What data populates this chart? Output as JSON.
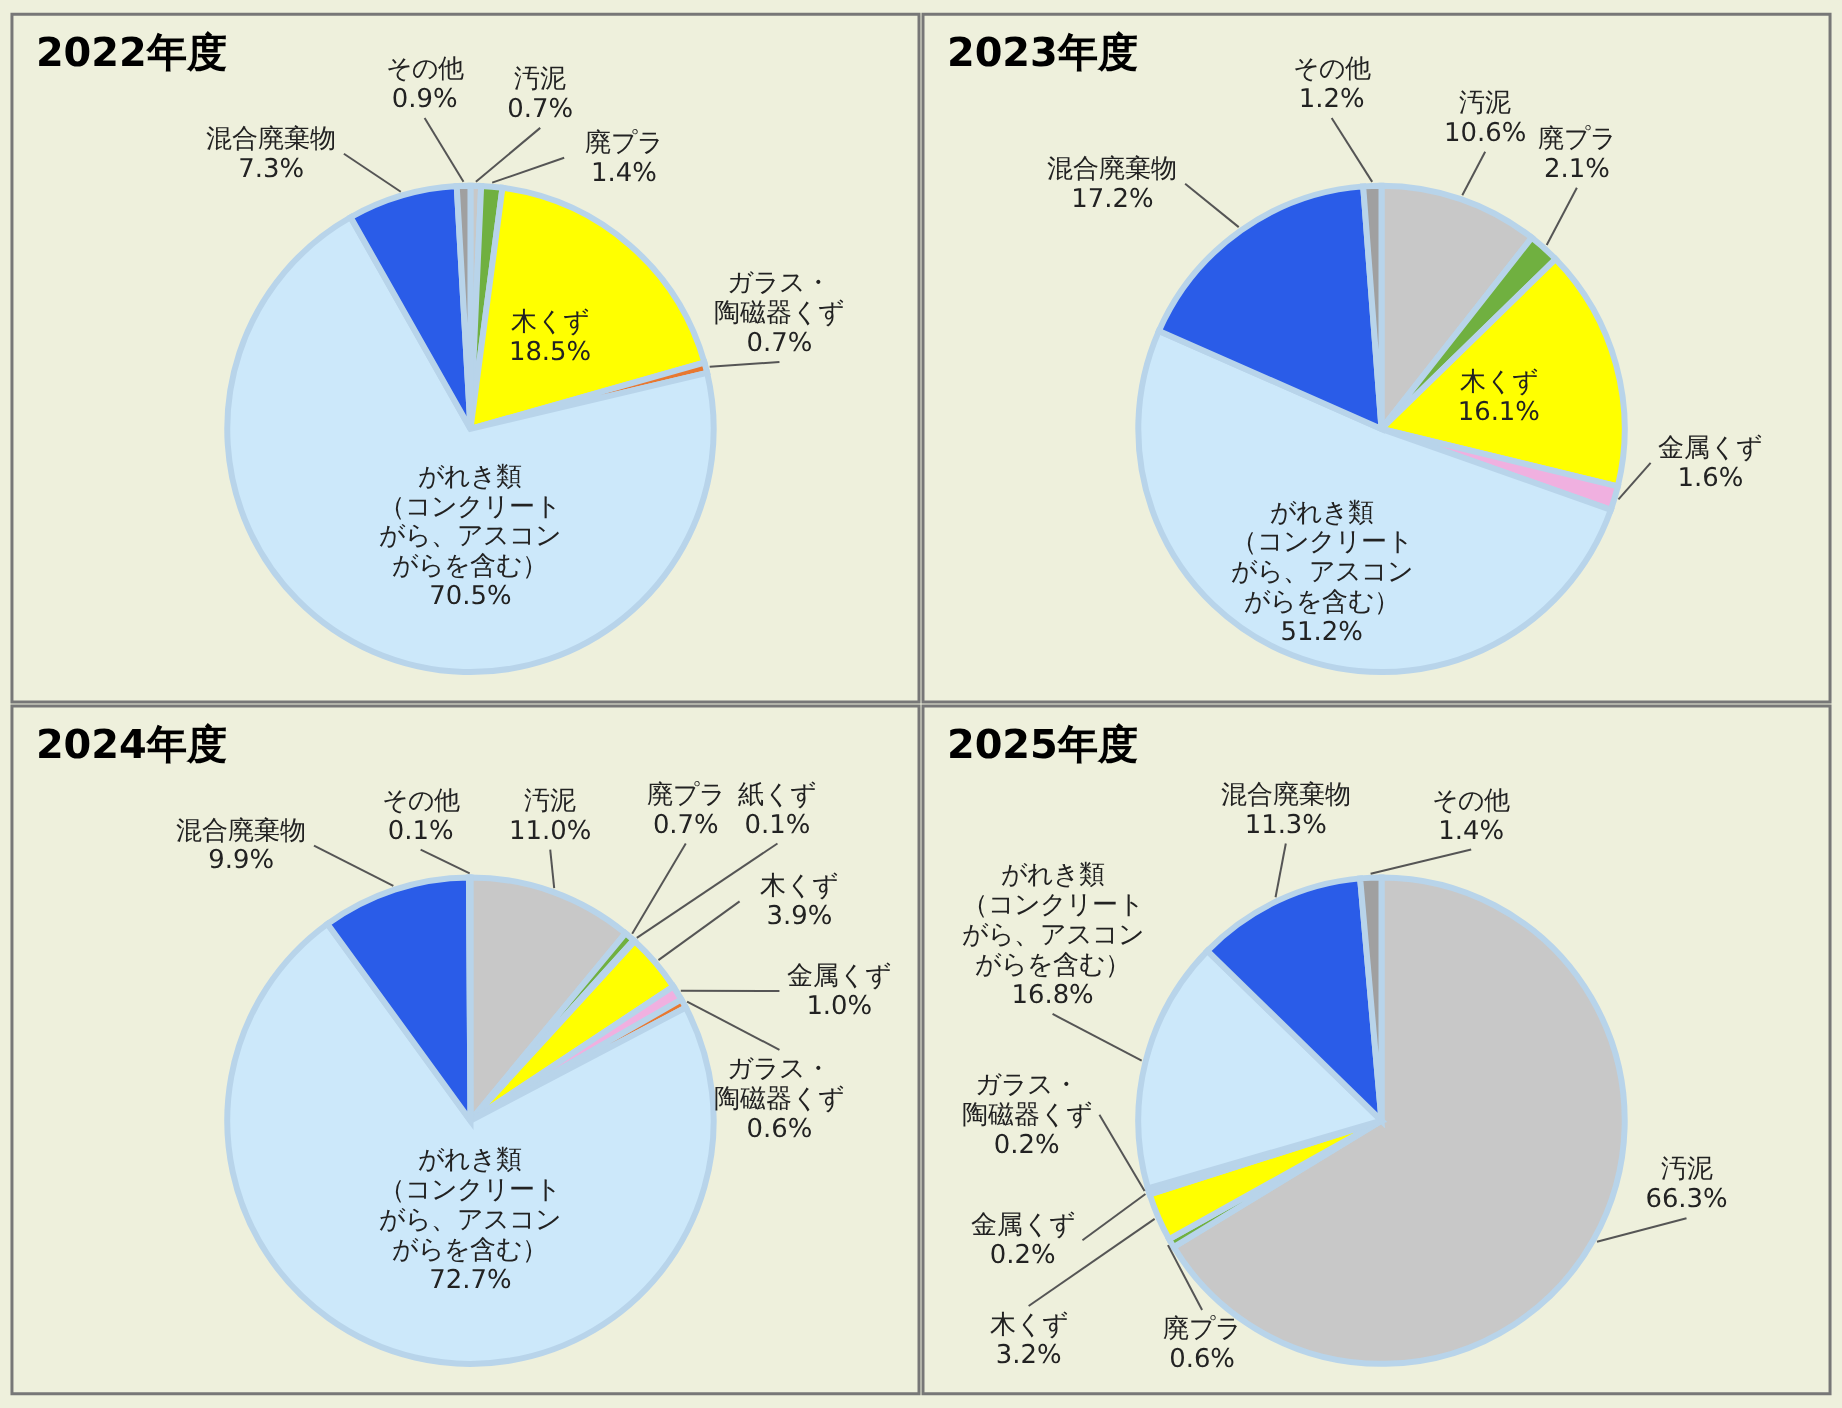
{
  "chart_data": [
    {
      "type": "pie",
      "title": "2022年度",
      "categories": [
        "汚泥",
        "廃プラ",
        "木くず",
        "ガラス・陶磁器くず",
        "がれき類（コンクリートがら、アスコンがらを含む）",
        "混合廃棄物",
        "その他"
      ],
      "values": [
        0.7,
        1.4,
        18.5,
        0.7,
        70.5,
        7.3,
        0.9
      ],
      "colors": [
        "#c8c8c8",
        "#70b040",
        "#ffff00",
        "#e87830",
        "#cce8fa",
        "#2a5ce8",
        "#a0a0a0"
      ],
      "value_labels": [
        "0.7%",
        "1.4%",
        "18.5%",
        "0.7%",
        "70.5%",
        "7.3%",
        "0.9%"
      ]
    },
    {
      "type": "pie",
      "title": "2023年度",
      "categories": [
        "汚泥",
        "廃プラ",
        "木くず",
        "金属くず",
        "がれき類（コンクリートがら、アスコンがらを含む）",
        "混合廃棄物",
        "その他"
      ],
      "values": [
        10.6,
        2.1,
        16.1,
        1.6,
        51.2,
        17.2,
        1.2
      ],
      "colors": [
        "#c8c8c8",
        "#70b040",
        "#ffff00",
        "#f0b0e0",
        "#cce8fa",
        "#2a5ce8",
        "#a0a0a0"
      ],
      "value_labels": [
        "10.6%",
        "2.1%",
        "16.1%",
        "1.6%",
        "51.2%",
        "17.2%",
        "1.2%"
      ]
    },
    {
      "type": "pie",
      "title": "2024年度",
      "categories": [
        "汚泥",
        "廃プラ",
        "紙くず",
        "木くず",
        "金属くず",
        "ガラス・陶磁器くず",
        "がれき類（コンクリートがら、アスコンがらを含む）",
        "混合廃棄物",
        "その他"
      ],
      "values": [
        11.0,
        0.7,
        0.1,
        3.9,
        1.0,
        0.6,
        72.7,
        9.9,
        0.1
      ],
      "colors": [
        "#c8c8c8",
        "#70b040",
        "#f5f5f5",
        "#ffff00",
        "#f0b0e0",
        "#e87830",
        "#cce8fa",
        "#2a5ce8",
        "#a0a0a0"
      ],
      "value_labels": [
        "11.0%",
        "0.7%",
        "0.1%",
        "3.9%",
        "1.0%",
        "0.6%",
        "72.7%",
        "9.9%",
        "0.1%"
      ]
    },
    {
      "type": "pie",
      "title": "2025年度",
      "categories": [
        "汚泥",
        "廃プラ",
        "木くず",
        "金属くず",
        "ガラス・陶磁器くず",
        "がれき類（コンクリートがら、アスコンがらを含む）",
        "混合廃棄物",
        "その他"
      ],
      "values": [
        66.3,
        0.6,
        3.2,
        0.2,
        0.2,
        16.8,
        11.3,
        1.4
      ],
      "colors": [
        "#c8c8c8",
        "#70b040",
        "#ffff00",
        "#f0b0e0",
        "#e87830",
        "#cce8fa",
        "#2a5ce8",
        "#a0a0a0"
      ],
      "value_labels": [
        "66.3%",
        "0.6%",
        "3.2%",
        "0.2%",
        "0.2%",
        "16.8%",
        "11.3%",
        "1.4%"
      ]
    }
  ]
}
